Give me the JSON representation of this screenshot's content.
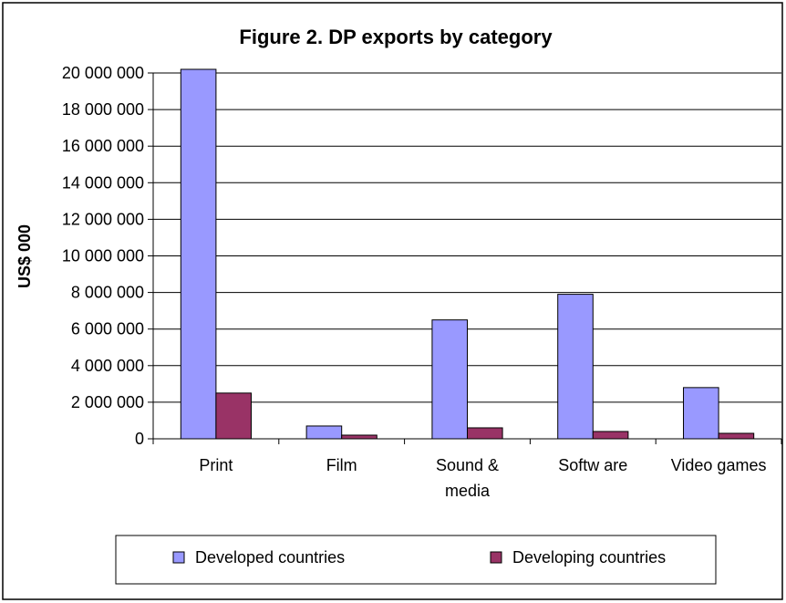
{
  "chart_data": {
    "type": "bar",
    "title": "Figure 2.  DP exports by category",
    "ylabel": "US$ 000",
    "xlabel": "",
    "ylim": [
      0,
      20000000
    ],
    "yticks": [
      0,
      2000000,
      4000000,
      6000000,
      8000000,
      10000000,
      12000000,
      14000000,
      16000000,
      18000000,
      20000000
    ],
    "ytick_labels": [
      "0",
      "2 000 000",
      "4 000 000",
      "6 000 000",
      "8 000 000",
      "10 000 000",
      "12 000 000",
      "14 000 000",
      "16 000 000",
      "18 000 000",
      "20 000 000"
    ],
    "categories": [
      {
        "lines": [
          "Print"
        ]
      },
      {
        "lines": [
          "Film"
        ]
      },
      {
        "lines": [
          "Sound &",
          "media"
        ]
      },
      {
        "lines": [
          "Softw are"
        ]
      },
      {
        "lines": [
          "Video games"
        ]
      }
    ],
    "series": [
      {
        "name": "Developed countries",
        "color": "#9999ff",
        "values": [
          20200000,
          700000,
          6500000,
          7900000,
          2800000
        ]
      },
      {
        "name": "Developing countries",
        "color": "#993366",
        "values": [
          2500000,
          200000,
          600000,
          400000,
          300000
        ]
      }
    ],
    "grid": true,
    "legend_position": "bottom"
  }
}
